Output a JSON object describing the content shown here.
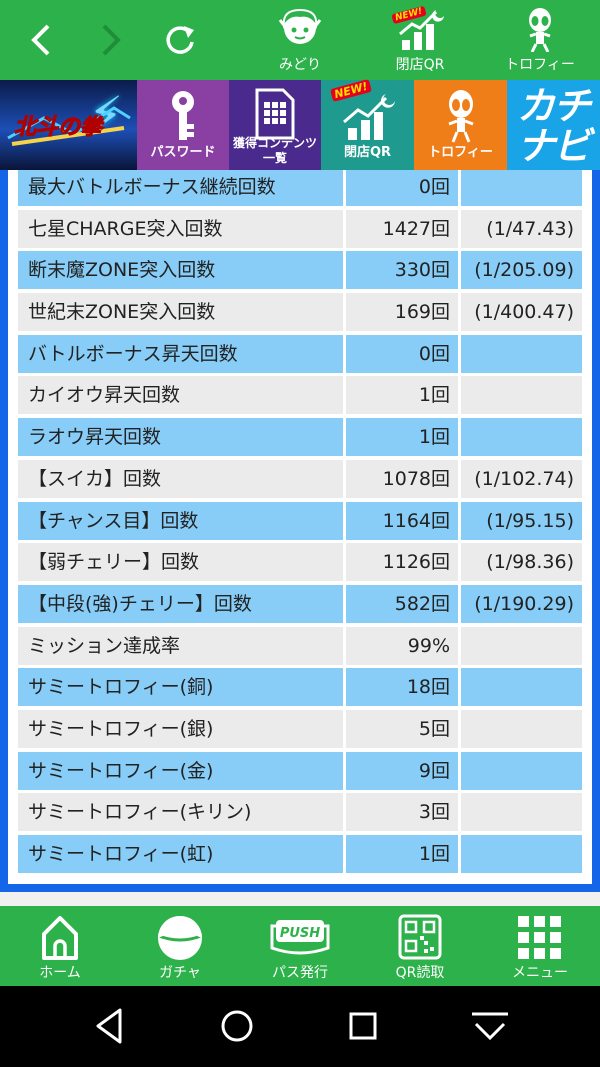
{
  "topbar": {
    "back_icon": "chevron-left-icon",
    "forward_icon": "chevron-right-icon",
    "reload_icon": "reload-icon",
    "items": [
      {
        "label": "みどり",
        "icon": "midori-character-icon"
      },
      {
        "label": "閉店QR",
        "icon": "closing-qr-icon",
        "badge": "NEW!"
      },
      {
        "label": "トロフィー",
        "icon": "alien-trophy-icon"
      }
    ]
  },
  "banners": [
    {
      "label": "",
      "icon": "hokuto-logo"
    },
    {
      "label": "パスワード",
      "icon": "key-icon"
    },
    {
      "label": "獲得コンテンツ一覧",
      "icon": "document-grid-icon"
    },
    {
      "label": "閉店QR",
      "icon": "closing-qr-icon",
      "badge": "NEW!"
    },
    {
      "label": "トロフィー",
      "icon": "alien-trophy-icon"
    },
    {
      "label": "",
      "icon": "kachi-navi-logo",
      "logo_text": "カチナビ"
    }
  ],
  "stats": {
    "rows": [
      {
        "name": "最大バトルボーナス継続回数",
        "value": "0回",
        "rate": ""
      },
      {
        "name": "七星CHARGE突入回数",
        "value": "1427回",
        "rate": "(1/47.43)"
      },
      {
        "name": "断末魔ZONE突入回数",
        "value": "330回",
        "rate": "(1/205.09)"
      },
      {
        "name": "世紀末ZONE突入回数",
        "value": "169回",
        "rate": "(1/400.47)"
      },
      {
        "name": "バトルボーナス昇天回数",
        "value": "0回",
        "rate": ""
      },
      {
        "name": "カイオウ昇天回数",
        "value": "1回",
        "rate": ""
      },
      {
        "name": "ラオウ昇天回数",
        "value": "1回",
        "rate": ""
      },
      {
        "name": "【スイカ】回数",
        "value": "1078回",
        "rate": "(1/102.74)"
      },
      {
        "name": "【チャンス目】回数",
        "value": "1164回",
        "rate": "(1/95.15)"
      },
      {
        "name": "【弱チェリー】回数",
        "value": "1126回",
        "rate": "(1/98.36)"
      },
      {
        "name": "【中段(強)チェリー】回数",
        "value": "582回",
        "rate": "(1/190.29)"
      },
      {
        "name": "ミッション達成率",
        "value": "99%",
        "rate": ""
      },
      {
        "name": "サミートロフィー(銅)",
        "value": "18回",
        "rate": ""
      },
      {
        "name": "サミートロフィー(銀)",
        "value": "5回",
        "rate": ""
      },
      {
        "name": "サミートロフィー(金)",
        "value": "9回",
        "rate": ""
      },
      {
        "name": "サミートロフィー(キリン)",
        "value": "3回",
        "rate": ""
      },
      {
        "name": "サミートロフィー(虹)",
        "value": "1回",
        "rate": ""
      }
    ]
  },
  "bottomnav": [
    {
      "label": "ホーム",
      "icon": "home-icon"
    },
    {
      "label": "ガチャ",
      "icon": "gacha-capsule-icon"
    },
    {
      "label": "パス発行",
      "icon": "push-button-icon",
      "icon_text": "PUSH"
    },
    {
      "label": "QR読取",
      "icon": "qr-code-icon"
    },
    {
      "label": "メニュー",
      "icon": "grid-menu-icon"
    }
  ],
  "colors": {
    "green": "#2db14a",
    "frame_blue": "#1565e8",
    "row_blue": "#87cdf7",
    "row_grey": "#ebebeb"
  }
}
